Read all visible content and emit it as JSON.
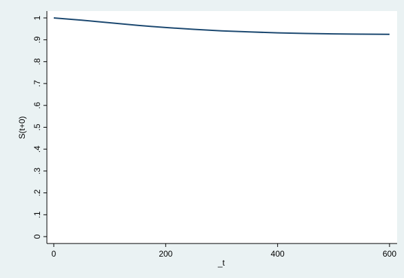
{
  "chart_data": {
    "type": "line",
    "xlabel": "_t",
    "ylabel": "S(t+0)",
    "xlim": [
      0,
      600
    ],
    "ylim": [
      0,
      1
    ],
    "x_ticks": [
      0,
      200,
      400,
      600
    ],
    "x_tick_labels": [
      "0",
      "200",
      "400",
      "600"
    ],
    "y_ticks": [
      0,
      0.1,
      0.2,
      0.3,
      0.4,
      0.5,
      0.6,
      0.7,
      0.8,
      0.9,
      1
    ],
    "y_tick_labels": [
      "0",
      ".1",
      ".2",
      ".3",
      ".4",
      ".5",
      ".6",
      ".7",
      ".8",
      ".9",
      "1"
    ],
    "grid": false,
    "series": [
      {
        "color": "#1a476f",
        "x": [
          0,
          25,
          50,
          75,
          100,
          125,
          150,
          175,
          200,
          250,
          300,
          350,
          400,
          450,
          500,
          550,
          600
        ],
        "y": [
          1.0,
          0.995,
          0.99,
          0.984,
          0.978,
          0.972,
          0.966,
          0.961,
          0.956,
          0.948,
          0.941,
          0.936,
          0.932,
          0.929,
          0.927,
          0.926,
          0.925
        ]
      }
    ],
    "colors": {
      "background": "#eaf2f3",
      "plot_background": "#ffffff"
    }
  }
}
